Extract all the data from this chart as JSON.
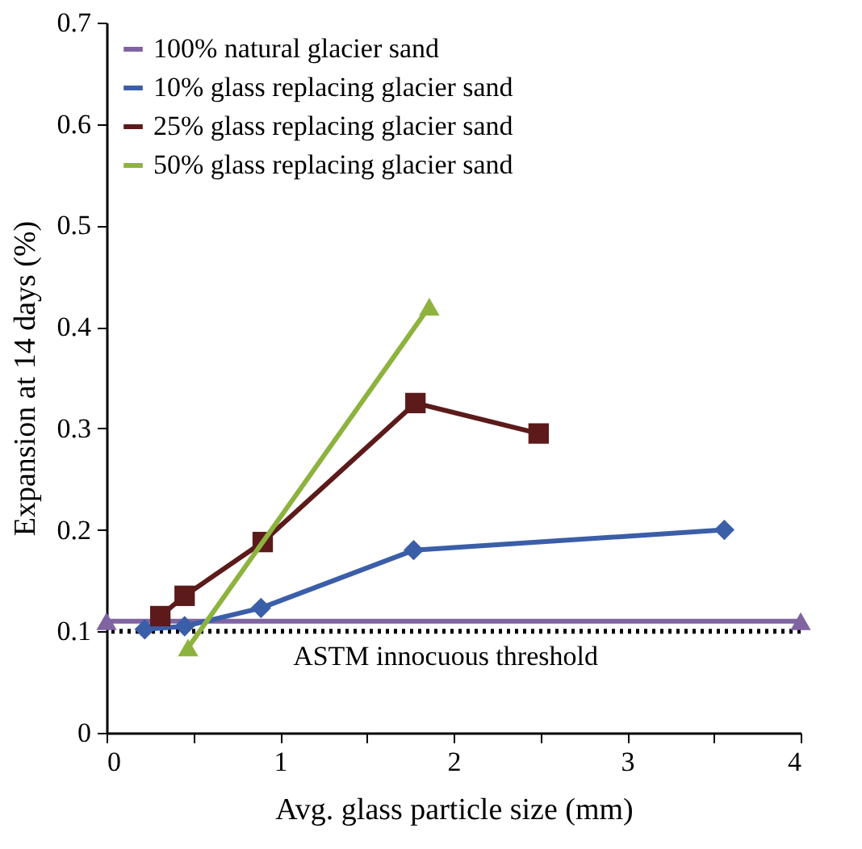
{
  "chart_data": {
    "type": "line",
    "xlabel": "Avg. glass particle size (mm)",
    "ylabel": "Expansion at 14 days (%)",
    "xlim": [
      0,
      4
    ],
    "xticks": [
      0,
      {
        "value": 0.5,
        "label": null
      },
      1,
      {
        "value": 1.5,
        "label": null
      },
      2,
      {
        "value": 2.5,
        "label": null
      },
      3,
      {
        "value": 3.5,
        "label": null
      },
      4
    ],
    "ylim": [
      0,
      0.7
    ],
    "yticks": [
      0,
      0.1,
      0.2,
      0.3,
      0.4,
      0.5,
      0.6,
      0.7
    ],
    "grid": false,
    "legend": "top left",
    "series": [
      {
        "name": "100% natural glacier sand",
        "color": "#8064a2",
        "marker": "triangle",
        "x": [
          0,
          4
        ],
        "values": [
          0.11,
          0.11
        ]
      },
      {
        "name": "10% glass replacing glacier sand",
        "color": "#3b5ea8",
        "marker": "diamond",
        "x": [
          0.22,
          0.45,
          0.89,
          1.77,
          3.56
        ],
        "values": [
          0.102,
          0.105,
          0.123,
          0.18,
          0.2
        ]
      },
      {
        "name": "25% glass replacing glacier sand",
        "color": "#5c1a1a",
        "marker": "square",
        "x": [
          0.31,
          0.45,
          0.9,
          1.78,
          2.49
        ],
        "values": [
          0.115,
          0.135,
          0.188,
          0.325,
          0.295
        ]
      },
      {
        "name": "50% glass replacing glacier sand",
        "color": "#8db33e",
        "marker": "triangle",
        "x": [
          0.47,
          1.86
        ],
        "values": [
          0.084,
          0.42
        ]
      }
    ],
    "ref_lines": [
      {
        "axis": "y",
        "value": 0.1,
        "label": "ASTM innocuous threshold",
        "color": "#000000",
        "line_style": "dotted"
      }
    ]
  }
}
